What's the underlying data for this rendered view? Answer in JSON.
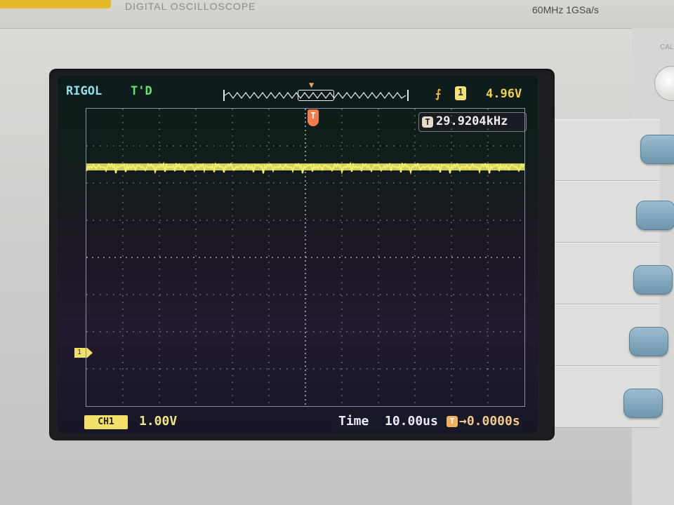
{
  "device": {
    "model_text": "DIGITAL OSCILLOSCOPE",
    "spec_text": "60MHz 1GSa/s",
    "right_edge_text": "CAL"
  },
  "screen": {
    "brand": "RIGOL",
    "trigger_status": "T'D",
    "trigger_level": "4.96V",
    "trigger_source_icon": "1",
    "frequency_icon": "T",
    "frequency": "29.9204kHz",
    "ch1_marker_label": "1",
    "ch1_badge_label": "CH1",
    "ch1_scale": "1.00V",
    "time_label": "Time",
    "time_per_div": "10.00us",
    "offset_icon": "T",
    "time_offset": "→0.0000s"
  },
  "colors": {
    "trace": "#f4ef6a",
    "grid": "#c9cbe4",
    "text_cyan": "#8fe0ea",
    "text_green": "#5fe874"
  },
  "icons": {
    "trigger_slope": "rising-edge-icon",
    "trigger_position": "trigger-position-marker-icon"
  }
}
